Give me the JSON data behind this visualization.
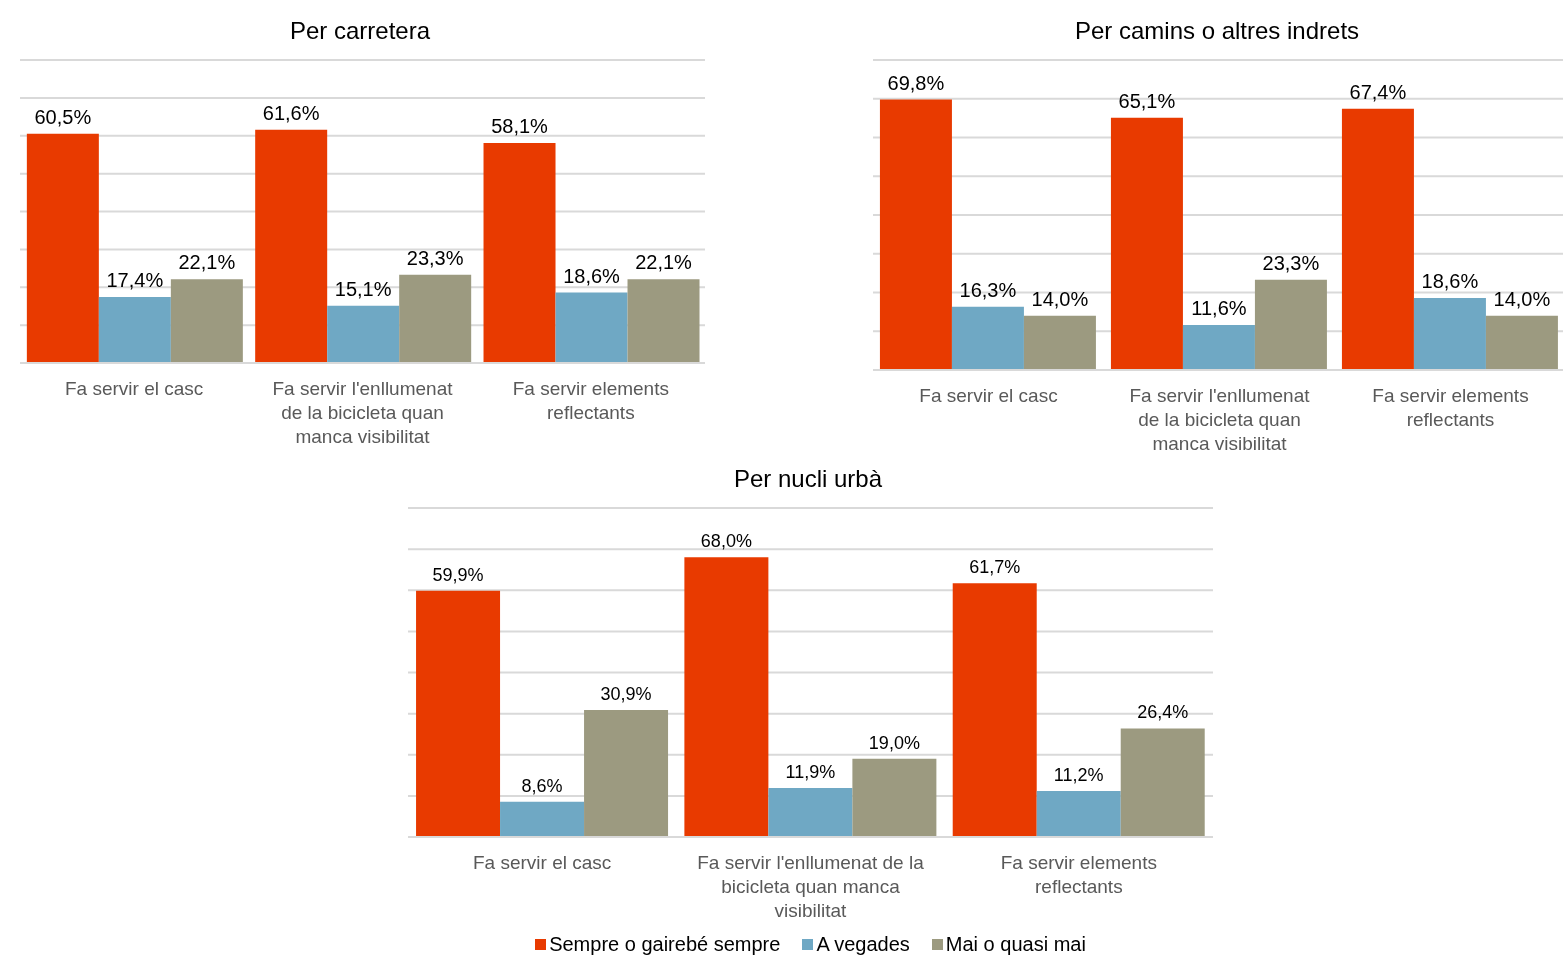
{
  "chart_data": [
    {
      "type": "bar",
      "title": "Per carretera",
      "categories": [
        "Fa servir el casc",
        "Fa servir l'enllumenat de la bicicleta quan manca visibilitat",
        "Fa servir elements reflectants"
      ],
      "ylim": [
        0,
        80
      ],
      "yticks": [
        0,
        10,
        20,
        30,
        40,
        50,
        60,
        70,
        80
      ],
      "grid": "y",
      "tick_labels": "x",
      "series": [
        {
          "color": "#e83a00",
          "values": [
            60.5,
            61.6,
            58.1
          ],
          "value_labels": [
            "60,5%",
            "61,6%",
            "58,1%"
          ]
        },
        {
          "color": "#6fa8c4",
          "values": [
            17.4,
            15.1,
            18.6
          ],
          "value_labels": [
            "17,4%",
            "15,1%",
            "18,6%"
          ]
        },
        {
          "color": "#9c9a80",
          "values": [
            22.1,
            23.3,
            22.1
          ],
          "value_labels": [
            "22,1%",
            "23,3%",
            "22,1%"
          ]
        }
      ]
    },
    {
      "type": "bar",
      "title": "Per camins o altres indrets",
      "categories": [
        "Fa servir el casc",
        "Fa servir l'enllumenat de la bicicleta quan manca visibilitat",
        "Fa servir elements reflectants"
      ],
      "ylim": [
        0,
        80
      ],
      "yticks": [
        0,
        10,
        20,
        30,
        40,
        50,
        60,
        70,
        80
      ],
      "grid": "y",
      "tick_labels": "x",
      "series": [
        {
          "color": "#e83a00",
          "values": [
            69.8,
            65.1,
            67.4
          ],
          "value_labels": [
            "69,8%",
            "65,1%",
            "67,4%"
          ]
        },
        {
          "color": "#6fa8c4",
          "values": [
            16.3,
            11.6,
            18.6
          ],
          "value_labels": [
            "16,3%",
            "11,6%",
            "18,6%"
          ]
        },
        {
          "color": "#9c9a80",
          "values": [
            14.0,
            23.3,
            14.0
          ],
          "value_labels": [
            "14,0%",
            "23,3%",
            "14,0%"
          ]
        }
      ]
    },
    {
      "type": "bar",
      "title": "Per nucli urbà",
      "categories": [
        "Fa servir el casc",
        "Fa servir l'enllumenat de la bicicleta quan manca visibilitat",
        "Fa servir elements reflectants"
      ],
      "ylim": [
        0,
        80
      ],
      "yticks": [
        0,
        10,
        20,
        30,
        40,
        50,
        60,
        70,
        80
      ],
      "grid": "y",
      "tick_labels": "x",
      "legend": "bottom",
      "series": [
        {
          "name": "Sempre o gairebé sempre",
          "color": "#e83a00",
          "values": [
            59.9,
            68.0,
            61.7
          ],
          "value_labels": [
            "59,9%",
            "68,0%",
            "61,7%"
          ]
        },
        {
          "name": "A vegades",
          "color": "#6fa8c4",
          "values": [
            8.6,
            11.9,
            11.2
          ],
          "value_labels": [
            "8,6%",
            "11,9%",
            "11,2%"
          ]
        },
        {
          "name": "Mai o quasi mai",
          "color": "#9c9a80",
          "values": [
            30.9,
            19.0,
            26.4
          ],
          "value_labels": [
            "30,9%",
            "19,0%",
            "26,4%"
          ]
        }
      ]
    }
  ]
}
